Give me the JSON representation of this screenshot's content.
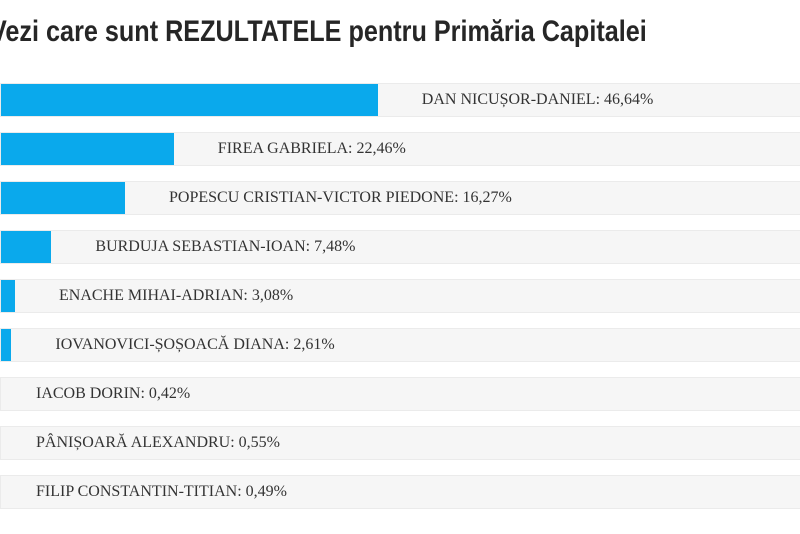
{
  "page": {
    "title": "Vezi care sunt REZULTATELE pentru Primăria Capitalei"
  },
  "chart_data": {
    "type": "bar",
    "orientation": "horizontal",
    "title": "Vezi care sunt REZULTATELE pentru Primăria Capitalei",
    "unit": "%",
    "decimal_separator": ",",
    "bar_color": "#0aa9ec",
    "row_background": "#f6f6f6",
    "row_border_color": "#ebebeb",
    "label_color": "#333333",
    "title_color": "#262626",
    "xlim": [
      0,
      100
    ],
    "grid": false,
    "legend": false,
    "categories": [
      "DAN NICUȘOR-DANIEL",
      "FIREA GABRIELA",
      "POPESCU CRISTIAN-VICTOR PIEDONE",
      "BURDUJA SEBASTIAN-IOAN",
      "ENACHE MIHAI-ADRIAN",
      "IOVANOVICI-ȘOȘOACĂ DIANA",
      "IACOB DORIN",
      "PÂNIȘOARĂ ALEXANDRU",
      "FILIP CONSTANTIN-TITIAN"
    ],
    "values": [
      46.64,
      22.46,
      16.27,
      7.48,
      3.08,
      2.61,
      0.42,
      0.55,
      0.49
    ],
    "value_labels": [
      "46,64%",
      "22,46%",
      "16,27%",
      "7,48%",
      "3,08%",
      "2,61%",
      "0,42%",
      "0,55%",
      "0,49%"
    ],
    "rows": [
      {
        "name": "DAN NICUȘOR-DANIEL",
        "value": 46.64,
        "display": "DAN NICUȘOR-DANIEL: 46,64%",
        "bar_pct": 47.1
      },
      {
        "name": "FIREA GABRIELA",
        "value": 22.46,
        "display": "FIREA GABRIELA: 22,46%",
        "bar_pct": 21.6
      },
      {
        "name": "POPESCU CRISTIAN-VICTOR PIEDONE",
        "value": 16.27,
        "display": "POPESCU CRISTIAN-VICTOR PIEDONE: 16,27%",
        "bar_pct": 15.5
      },
      {
        "name": "BURDUJA SEBASTIAN-IOAN",
        "value": 7.48,
        "display": "BURDUJA SEBASTIAN-IOAN: 7,48%",
        "bar_pct": 6.3
      },
      {
        "name": "ENACHE MIHAI-ADRIAN",
        "value": 3.08,
        "display": "ENACHE MIHAI-ADRIAN: 3,08%",
        "bar_pct": 1.75
      },
      {
        "name": "IOVANOVICI-ȘOȘOACĂ DIANA",
        "value": 2.61,
        "display": "IOVANOVICI-ȘOȘOACĂ DIANA: 2,61%",
        "bar_pct": 1.3
      },
      {
        "name": "IACOB DORIN",
        "value": 0.42,
        "display": "IACOB DORIN: 0,42%",
        "bar_pct": 0
      },
      {
        "name": "PÂNIȘOARĂ ALEXANDRU",
        "value": 0.55,
        "display": "PÂNIȘOARĂ ALEXANDRU: 0,55%",
        "bar_pct": 0
      },
      {
        "name": "FILIP CONSTANTIN-TITIAN",
        "value": 0.49,
        "display": "FILIP CONSTANTIN-TITIAN: 0,49%",
        "bar_pct": 0
      }
    ]
  }
}
